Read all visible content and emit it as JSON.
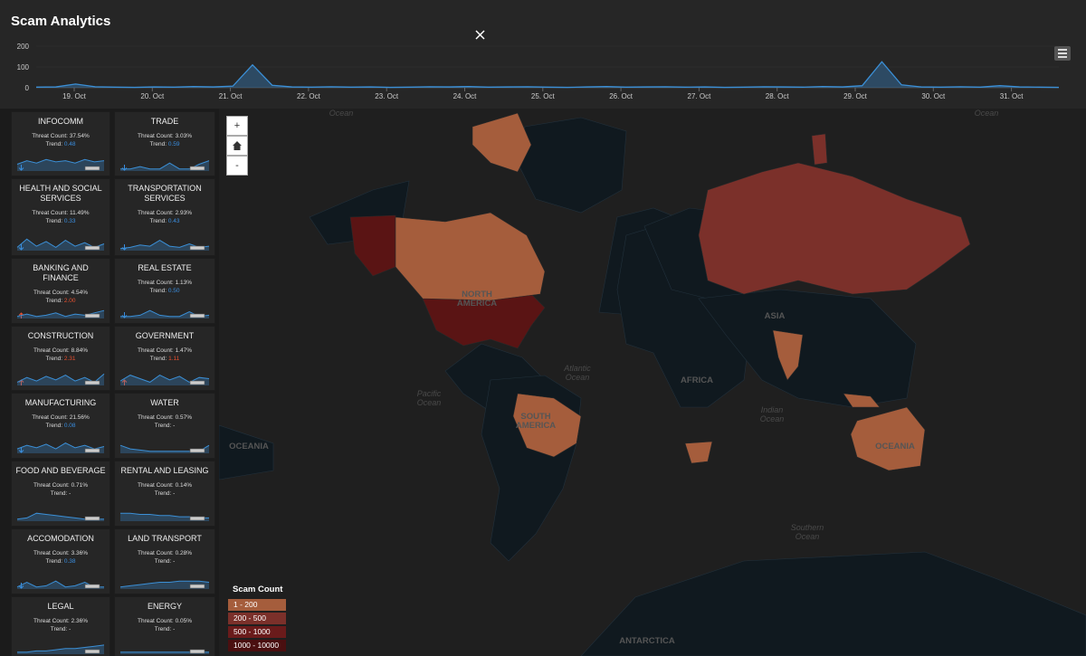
{
  "header": {
    "title": "Scam Analytics"
  },
  "timeline": {
    "ylim": [
      0,
      200
    ],
    "yticks": [
      0,
      100,
      200
    ],
    "color": "#3b8fd6",
    "xlabels": [
      "19. Oct",
      "20. Oct",
      "21. Oct",
      "22. Oct",
      "23. Oct",
      "24. Oct",
      "25. Oct",
      "26. Oct",
      "27. Oct",
      "28. Oct",
      "29. Oct",
      "30. Oct",
      "31. Oct"
    ],
    "values": [
      3,
      4,
      18,
      5,
      3,
      2,
      4,
      3,
      6,
      4,
      8,
      110,
      12,
      4,
      3,
      5,
      3,
      4,
      2,
      3,
      5,
      4,
      6,
      3,
      4,
      5,
      3,
      2,
      4,
      6,
      3,
      4,
      5,
      3,
      4,
      2,
      3,
      5,
      4,
      3,
      6,
      4,
      10,
      125,
      14,
      4,
      3,
      5,
      3,
      10,
      4,
      3,
      2
    ]
  },
  "threat_label": "Threat Count:",
  "trend_label": "Trend:",
  "sectors": [
    {
      "name": "INFOCOMM",
      "threat": "37.54%",
      "trend": "0.48",
      "trend_dir": "down",
      "spark": [
        5,
        8,
        6,
        9,
        7,
        8,
        6,
        9,
        7,
        8
      ]
    },
    {
      "name": "TRADE",
      "threat": "3.03%",
      "trend": "0.59",
      "trend_dir": "down",
      "spark": [
        1,
        1,
        3,
        1,
        1,
        6,
        1,
        1,
        5,
        8
      ]
    },
    {
      "name": "HEALTH AND SOCIAL SERVICES",
      "threat": "11.49%",
      "trend": "0.33",
      "trend_dir": "down",
      "spark": [
        2,
        9,
        3,
        7,
        2,
        8,
        3,
        6,
        2,
        5
      ]
    },
    {
      "name": "TRANSPORTATION SERVICES",
      "threat": "2.93%",
      "trend": "0.43",
      "trend_dir": "down",
      "spark": [
        1,
        2,
        4,
        3,
        8,
        3,
        2,
        5,
        2,
        3
      ]
    },
    {
      "name": "BANKING AND FINANCE",
      "threat": "4.54%",
      "trend": "2.00",
      "trend_dir": "up",
      "spark": [
        1,
        3,
        1,
        2,
        4,
        1,
        3,
        2,
        4,
        6
      ]
    },
    {
      "name": "REAL ESTATE",
      "threat": "1.13%",
      "trend": "0.50",
      "trend_dir": "down",
      "spark": [
        1,
        1,
        2,
        6,
        2,
        1,
        1,
        5,
        1,
        2
      ]
    },
    {
      "name": "CONSTRUCTION",
      "threat": "8.84%",
      "trend": "2.31",
      "trend_dir": "up",
      "spark": [
        2,
        6,
        3,
        7,
        4,
        8,
        3,
        6,
        2,
        9
      ]
    },
    {
      "name": "GOVERNMENT",
      "threat": "1.47%",
      "trend": "1.11",
      "trend_dir": "up",
      "spark": [
        3,
        8,
        5,
        2,
        8,
        4,
        7,
        2,
        6,
        5
      ]
    },
    {
      "name": "MANUFACTURING",
      "threat": "21.56%",
      "trend": "0.08",
      "trend_dir": "down",
      "spark": [
        3,
        6,
        4,
        7,
        3,
        8,
        4,
        6,
        3,
        5
      ]
    },
    {
      "name": "WATER",
      "threat": "0.57%",
      "trend": "-",
      "spark": [
        6,
        3,
        2,
        1,
        1,
        1,
        1,
        1,
        1,
        6
      ]
    },
    {
      "name": "FOOD AND BEVERAGE",
      "threat": "0.71%",
      "trend": "-",
      "spark": [
        1,
        2,
        6,
        5,
        4,
        3,
        2,
        1,
        1,
        1
      ]
    },
    {
      "name": "RENTAL AND LEASING",
      "threat": "0.14%",
      "trend": "-",
      "spark": [
        6,
        6,
        5,
        5,
        4,
        4,
        3,
        3,
        2,
        2
      ]
    },
    {
      "name": "ACCOMODATION",
      "threat": "3.36%",
      "trend": "0.38",
      "trend_dir": "down",
      "spark": [
        1,
        5,
        1,
        2,
        6,
        1,
        2,
        5,
        1,
        1
      ]
    },
    {
      "name": "LAND TRANSPORT",
      "threat": "0.28%",
      "trend": "-",
      "spark": [
        1,
        2,
        3,
        4,
        5,
        5,
        6,
        6,
        6,
        5
      ]
    },
    {
      "name": "LEGAL",
      "threat": "2.36%",
      "trend": "-",
      "spark": [
        1,
        1,
        2,
        2,
        3,
        4,
        4,
        5,
        6,
        7
      ]
    },
    {
      "name": "ENERGY",
      "threat": "0.05%",
      "trend": "-",
      "spark": [
        1,
        1,
        1,
        1,
        1,
        1,
        1,
        1,
        1,
        1
      ]
    }
  ],
  "map": {
    "zoom_in": "+",
    "zoom_out": "-",
    "labels": [
      [
        "Ocean"
      ],
      [
        "Ocean"
      ],
      [
        "NORTH",
        "AMERICA"
      ],
      [
        "SOUTH",
        "AMERICA"
      ],
      [
        "Atlantic",
        "Ocean"
      ],
      [
        "Pacific",
        "Ocean"
      ],
      [
        "Indian",
        "Ocean"
      ],
      [
        "Southern",
        "Ocean"
      ],
      [
        "AFRICA"
      ],
      [
        "ASIA"
      ],
      [
        "OCEANIA"
      ],
      [
        "OCEANIA"
      ],
      [
        "ANTARCTICA"
      ]
    ],
    "legend": {
      "title": "Scam Count",
      "items": [
        {
          "label": "1 - 200",
          "color": "#a55d3c"
        },
        {
          "label": "200 - 500",
          "color": "#7b302a"
        },
        {
          "label": "500 - 1000",
          "color": "#6a1b1b"
        },
        {
          "label": "1000 - 10000",
          "color": "#4a0f10"
        }
      ]
    }
  }
}
